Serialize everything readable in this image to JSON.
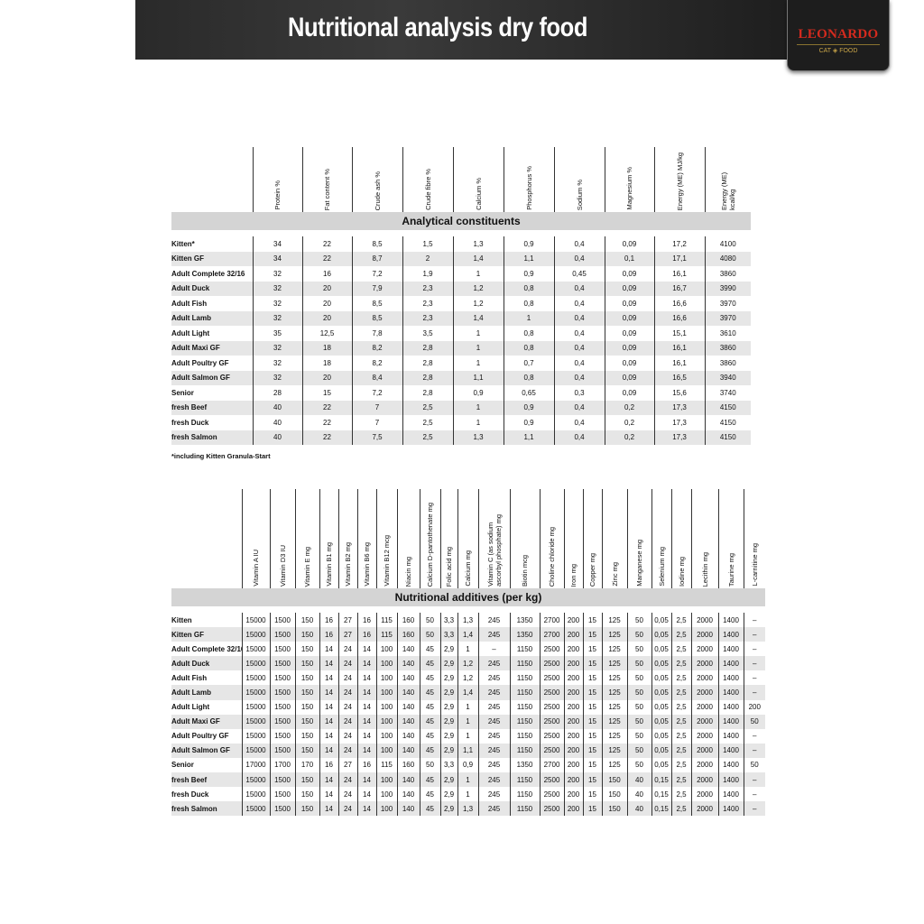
{
  "header": {
    "title": "Nutritional analysis dry food",
    "logo_text": "LEONARDO",
    "logo_sub_left": "CAT",
    "logo_sub_right": "FOOD"
  },
  "colors": {
    "header_bg": "#2a2a2a",
    "logo_red": "#d42a1e",
    "logo_gold": "#c9a548",
    "section_bar": "#d4d4d4",
    "alt_row": "#e6e6e6"
  },
  "analytical": {
    "section_title": "Analytical constituents",
    "columns": [
      "Protein %",
      "Fat content %",
      "Crude ash %",
      "Crude fibre %",
      "Calcium %",
      "Phosphorus %",
      "Sodium %",
      "Magnesium %",
      "Energy (ME) MJ/kg",
      "Energy (ME) kcal/kg"
    ],
    "rows": [
      {
        "label": "Kitten*",
        "values": [
          "34",
          "22",
          "8,5",
          "1,5",
          "1,3",
          "0,9",
          "0,4",
          "0,09",
          "17,2",
          "4100"
        ]
      },
      {
        "label": "Kitten GF",
        "values": [
          "34",
          "22",
          "8,7",
          "2",
          "1,4",
          "1,1",
          "0,4",
          "0,1",
          "17,1",
          "4080"
        ]
      },
      {
        "label": "Adult Complete 32/16",
        "values": [
          "32",
          "16",
          "7,2",
          "1,9",
          "1",
          "0,9",
          "0,45",
          "0,09",
          "16,1",
          "3860"
        ]
      },
      {
        "label": "Adult Duck",
        "values": [
          "32",
          "20",
          "7,9",
          "2,3",
          "1,2",
          "0,8",
          "0,4",
          "0,09",
          "16,7",
          "3990"
        ]
      },
      {
        "label": "Adult Fish",
        "values": [
          "32",
          "20",
          "8,5",
          "2,3",
          "1,2",
          "0,8",
          "0,4",
          "0,09",
          "16,6",
          "3970"
        ]
      },
      {
        "label": "Adult Lamb",
        "values": [
          "32",
          "20",
          "8,5",
          "2,3",
          "1,4",
          "1",
          "0,4",
          "0,09",
          "16,6",
          "3970"
        ]
      },
      {
        "label": "Adult Light",
        "values": [
          "35",
          "12,5",
          "7,8",
          "3,5",
          "1",
          "0,8",
          "0,4",
          "0,09",
          "15,1",
          "3610"
        ]
      },
      {
        "label": "Adult Maxi GF",
        "values": [
          "32",
          "18",
          "8,2",
          "2,8",
          "1",
          "0,8",
          "0,4",
          "0,09",
          "16,1",
          "3860"
        ]
      },
      {
        "label": "Adult Poultry GF",
        "values": [
          "32",
          "18",
          "8,2",
          "2,8",
          "1",
          "0,7",
          "0,4",
          "0,09",
          "16,1",
          "3860"
        ]
      },
      {
        "label": "Adult Salmon GF",
        "values": [
          "32",
          "20",
          "8,4",
          "2,8",
          "1,1",
          "0,8",
          "0,4",
          "0,09",
          "16,5",
          "3940"
        ]
      },
      {
        "label": "Senior",
        "values": [
          "28",
          "15",
          "7,2",
          "2,8",
          "0,9",
          "0,65",
          "0,3",
          "0,09",
          "15,6",
          "3740"
        ]
      },
      {
        "label": "fresh Beef",
        "values": [
          "40",
          "22",
          "7",
          "2,5",
          "1",
          "0,9",
          "0,4",
          "0,2",
          "17,3",
          "4150"
        ]
      },
      {
        "label": "fresh Duck",
        "values": [
          "40",
          "22",
          "7",
          "2,5",
          "1",
          "0,9",
          "0,4",
          "0,2",
          "17,3",
          "4150"
        ]
      },
      {
        "label": "fresh Salmon",
        "values": [
          "40",
          "22",
          "7,5",
          "2,5",
          "1,3",
          "1,1",
          "0,4",
          "0,2",
          "17,3",
          "4150"
        ]
      }
    ],
    "footnote": "*including Kitten Granula-Start"
  },
  "additives": {
    "section_title": "Nutritional additives (per kg)",
    "columns": [
      "Vitamin A IU",
      "Vitamin D3 IU",
      "Vitamin E mg",
      "Vitamin B1 mg",
      "Vitamin B2 mg",
      "Vitamin B6 mg",
      "Vitamin B12 mcg",
      "Niacin mg",
      "Calcium D-pantothenate mg",
      "Folic acid mg",
      "Calcium mg",
      "Vitamin C (as sodium ascorbyl phosphate) mg",
      "Biotin mcg",
      "Choline chloride mg",
      "Iron mg",
      "Copper mg",
      "Zinc mg",
      "Manganese mg",
      "Selenium mg",
      "Iodine mg",
      "Lecithin mg",
      "Taurine mg",
      "L-carnitine mg"
    ],
    "rows": [
      {
        "label": "Kitten",
        "values": [
          "15000",
          "1500",
          "150",
          "16",
          "27",
          "16",
          "115",
          "160",
          "50",
          "3,3",
          "1,3",
          "245",
          "1350",
          "2700",
          "200",
          "15",
          "125",
          "50",
          "0,05",
          "2,5",
          "2000",
          "1400",
          "–"
        ]
      },
      {
        "label": "Kitten GF",
        "values": [
          "15000",
          "1500",
          "150",
          "16",
          "27",
          "16",
          "115",
          "160",
          "50",
          "3,3",
          "1,4",
          "245",
          "1350",
          "2700",
          "200",
          "15",
          "125",
          "50",
          "0,05",
          "2,5",
          "2000",
          "1400",
          "–"
        ]
      },
      {
        "label": "Adult Complete 32/16",
        "values": [
          "15000",
          "1500",
          "150",
          "14",
          "24",
          "14",
          "100",
          "140",
          "45",
          "2,9",
          "1",
          "–",
          "1150",
          "2500",
          "200",
          "15",
          "125",
          "50",
          "0,05",
          "2,5",
          "2000",
          "1400",
          "–"
        ]
      },
      {
        "label": "Adult Duck",
        "values": [
          "15000",
          "1500",
          "150",
          "14",
          "24",
          "14",
          "100",
          "140",
          "45",
          "2,9",
          "1,2",
          "245",
          "1150",
          "2500",
          "200",
          "15",
          "125",
          "50",
          "0,05",
          "2,5",
          "2000",
          "1400",
          "–"
        ]
      },
      {
        "label": "Adult Fish",
        "values": [
          "15000",
          "1500",
          "150",
          "14",
          "24",
          "14",
          "100",
          "140",
          "45",
          "2,9",
          "1,2",
          "245",
          "1150",
          "2500",
          "200",
          "15",
          "125",
          "50",
          "0,05",
          "2,5",
          "2000",
          "1400",
          "–"
        ]
      },
      {
        "label": "Adult Lamb",
        "values": [
          "15000",
          "1500",
          "150",
          "14",
          "24",
          "14",
          "100",
          "140",
          "45",
          "2,9",
          "1,4",
          "245",
          "1150",
          "2500",
          "200",
          "15",
          "125",
          "50",
          "0,05",
          "2,5",
          "2000",
          "1400",
          "–"
        ]
      },
      {
        "label": "Adult Light",
        "values": [
          "15000",
          "1500",
          "150",
          "14",
          "24",
          "14",
          "100",
          "140",
          "45",
          "2,9",
          "1",
          "245",
          "1150",
          "2500",
          "200",
          "15",
          "125",
          "50",
          "0,05",
          "2,5",
          "2000",
          "1400",
          "200"
        ]
      },
      {
        "label": "Adult Maxi GF",
        "values": [
          "15000",
          "1500",
          "150",
          "14",
          "24",
          "14",
          "100",
          "140",
          "45",
          "2,9",
          "1",
          "245",
          "1150",
          "2500",
          "200",
          "15",
          "125",
          "50",
          "0,05",
          "2,5",
          "2000",
          "1400",
          "50"
        ]
      },
      {
        "label": "Adult Poultry GF",
        "values": [
          "15000",
          "1500",
          "150",
          "14",
          "24",
          "14",
          "100",
          "140",
          "45",
          "2,9",
          "1",
          "245",
          "1150",
          "2500",
          "200",
          "15",
          "125",
          "50",
          "0,05",
          "2,5",
          "2000",
          "1400",
          "–"
        ]
      },
      {
        "label": "Adult Salmon GF",
        "values": [
          "15000",
          "1500",
          "150",
          "14",
          "24",
          "14",
          "100",
          "140",
          "45",
          "2,9",
          "1,1",
          "245",
          "1150",
          "2500",
          "200",
          "15",
          "125",
          "50",
          "0,05",
          "2,5",
          "2000",
          "1400",
          "–"
        ]
      },
      {
        "label": "Senior",
        "values": [
          "17000",
          "1700",
          "170",
          "16",
          "27",
          "16",
          "115",
          "160",
          "50",
          "3,3",
          "0,9",
          "245",
          "1350",
          "2700",
          "200",
          "15",
          "125",
          "50",
          "0,05",
          "2,5",
          "2000",
          "1400",
          "50"
        ]
      },
      {
        "label": "fresh Beef",
        "values": [
          "15000",
          "1500",
          "150",
          "14",
          "24",
          "14",
          "100",
          "140",
          "45",
          "2,9",
          "1",
          "245",
          "1150",
          "2500",
          "200",
          "15",
          "150",
          "40",
          "0,15",
          "2,5",
          "2000",
          "1400",
          "–"
        ]
      },
      {
        "label": "fresh Duck",
        "values": [
          "15000",
          "1500",
          "150",
          "14",
          "24",
          "14",
          "100",
          "140",
          "45",
          "2,9",
          "1",
          "245",
          "1150",
          "2500",
          "200",
          "15",
          "150",
          "40",
          "0,15",
          "2,5",
          "2000",
          "1400",
          "–"
        ]
      },
      {
        "label": "fresh Salmon",
        "values": [
          "15000",
          "1500",
          "150",
          "14",
          "24",
          "14",
          "100",
          "140",
          "45",
          "2,9",
          "1,3",
          "245",
          "1150",
          "2500",
          "200",
          "15",
          "150",
          "40",
          "0,15",
          "2,5",
          "2000",
          "1400",
          "–"
        ]
      }
    ]
  }
}
